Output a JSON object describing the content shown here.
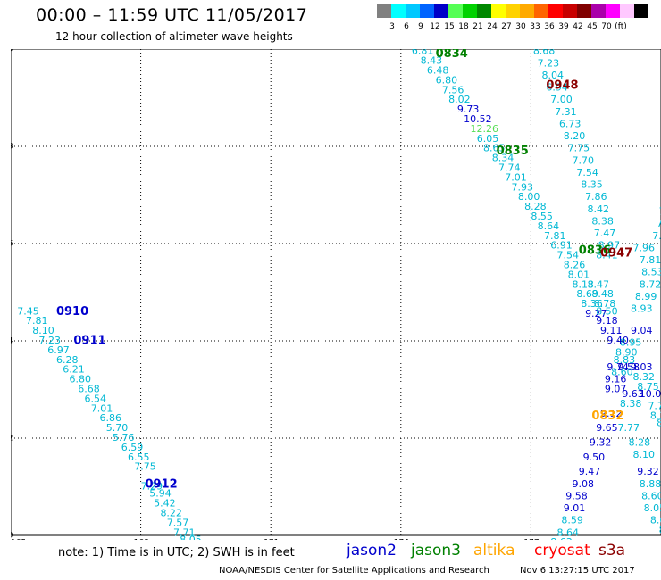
{
  "header": {
    "title": "00:00 – 11:59 UTC 11/05/2017",
    "subtitle": "12 hour collection of altimeter wave heights"
  },
  "colorbar": {
    "colors": [
      "#808080",
      "#00ffff",
      "#00c8ff",
      "#0064ff",
      "#0000c8",
      "#55ff55",
      "#00d200",
      "#008800",
      "#ffff00",
      "#ffd200",
      "#ffaa00",
      "#ff6400",
      "#ff0000",
      "#c80000",
      "#800000",
      "#aa00aa",
      "#ff00ff",
      "#ffc8ff",
      "#000000"
    ],
    "labels": [
      "3",
      "6",
      "9",
      "12",
      "15",
      "18",
      "21",
      "24",
      "27",
      "30",
      "33",
      "36",
      "39",
      "42",
      "45",
      "70",
      "(ft)"
    ]
  },
  "map": {
    "lon_ticks": [
      "165",
      "168",
      "171",
      "174",
      "177"
    ],
    "lat_ticks": [
      "40",
      "38",
      "36",
      "34",
      "32",
      "30"
    ],
    "lon_range": [
      165,
      180
    ],
    "lat_range": [
      30,
      40
    ]
  },
  "passes": [
    {
      "time": "0910",
      "color": "#0000cd",
      "lon": 166.05,
      "lat": 34.6
    },
    {
      "time": "0911",
      "color": "#0000cd",
      "lon": 166.45,
      "lat": 34.0
    },
    {
      "time": "0912",
      "color": "#0000cd",
      "lon": 168.1,
      "lat": 31.05
    },
    {
      "time": "0834",
      "color": "#008000",
      "lon": 174.8,
      "lat": 39.9
    },
    {
      "time": "0835",
      "color": "#008000",
      "lon": 176.2,
      "lat": 37.9
    },
    {
      "time": "0836",
      "color": "#008000",
      "lon": 178.1,
      "lat": 35.85
    },
    {
      "time": "0948",
      "color": "#8b0000",
      "lon": 177.35,
      "lat": 39.25
    },
    {
      "time": "0947",
      "color": "#8b0000",
      "lon": 178.6,
      "lat": 35.8
    },
    {
      "time": "0832",
      "color": "#ffa500",
      "lon": 178.4,
      "lat": 32.45
    }
  ],
  "values": [
    {
      "v": "7.45",
      "lon": 165.15,
      "lat": 34.6,
      "c": "#00b8d4"
    },
    {
      "v": "7.81",
      "lon": 165.35,
      "lat": 34.4,
      "c": "#00b8d4"
    },
    {
      "v": "8.10",
      "lon": 165.5,
      "lat": 34.2,
      "c": "#00b8d4"
    },
    {
      "v": "7.23",
      "lon": 165.65,
      "lat": 34.0,
      "c": "#00b8d4"
    },
    {
      "v": "6.97",
      "lon": 165.85,
      "lat": 33.8,
      "c": "#00b8d4"
    },
    {
      "v": "6.28",
      "lon": 166.05,
      "lat": 33.6,
      "c": "#00b8d4"
    },
    {
      "v": "6.21",
      "lon": 166.2,
      "lat": 33.4,
      "c": "#00b8d4"
    },
    {
      "v": "6.80",
      "lon": 166.35,
      "lat": 33.2,
      "c": "#00b8d4"
    },
    {
      "v": "6.68",
      "lon": 166.55,
      "lat": 33.0,
      "c": "#00b8d4"
    },
    {
      "v": "6.54",
      "lon": 166.7,
      "lat": 32.8,
      "c": "#00b8d4"
    },
    {
      "v": "7.01",
      "lon": 166.85,
      "lat": 32.6,
      "c": "#00b8d4"
    },
    {
      "v": "6.86",
      "lon": 167.05,
      "lat": 32.4,
      "c": "#00b8d4"
    },
    {
      "v": "5.70",
      "lon": 167.2,
      "lat": 32.2,
      "c": "#00b8d4"
    },
    {
      "v": "5.76",
      "lon": 167.35,
      "lat": 32.0,
      "c": "#00b8d4"
    },
    {
      "v": "6.59",
      "lon": 167.55,
      "lat": 31.8,
      "c": "#00b8d4"
    },
    {
      "v": "6.55",
      "lon": 167.7,
      "lat": 31.6,
      "c": "#00b8d4"
    },
    {
      "v": "7.75",
      "lon": 167.85,
      "lat": 31.4,
      "c": "#00b8d4"
    },
    {
      "v": "7.29",
      "lon": 168.0,
      "lat": 31.0,
      "c": "#00b8d4"
    },
    {
      "v": "5.94",
      "lon": 168.2,
      "lat": 30.85,
      "c": "#00b8d4"
    },
    {
      "v": "5.42",
      "lon": 168.3,
      "lat": 30.65,
      "c": "#00b8d4"
    },
    {
      "v": "8.22",
      "lon": 168.45,
      "lat": 30.45,
      "c": "#00b8d4"
    },
    {
      "v": "7.57",
      "lon": 168.6,
      "lat": 30.25,
      "c": "#00b8d4"
    },
    {
      "v": "7.71",
      "lon": 168.75,
      "lat": 30.05,
      "c": "#00b8d4"
    },
    {
      "v": "8.05",
      "lon": 168.9,
      "lat": 29.9,
      "c": "#00b8d4"
    },
    {
      "v": "6.81",
      "lon": 174.25,
      "lat": 39.95,
      "c": "#00b8d4"
    },
    {
      "v": "8.43",
      "lon": 174.45,
      "lat": 39.75,
      "c": "#00b8d4"
    },
    {
      "v": "6.48",
      "lon": 174.6,
      "lat": 39.55,
      "c": "#00b8d4"
    },
    {
      "v": "6.80",
      "lon": 174.8,
      "lat": 39.35,
      "c": "#00b8d4"
    },
    {
      "v": "7.56",
      "lon": 174.95,
      "lat": 39.15,
      "c": "#00b8d4"
    },
    {
      "v": "8.02",
      "lon": 175.1,
      "lat": 38.95,
      "c": "#00b8d4"
    },
    {
      "v": "9.73",
      "lon": 175.3,
      "lat": 38.75,
      "c": "#0000cd"
    },
    {
      "v": "10.52",
      "lon": 175.45,
      "lat": 38.55,
      "c": "#0000cd"
    },
    {
      "v": "12.26",
      "lon": 175.6,
      "lat": 38.35,
      "c": "#55dd55"
    },
    {
      "v": "6.05",
      "lon": 175.75,
      "lat": 38.15,
      "c": "#00b8d4"
    },
    {
      "v": "8.65",
      "lon": 175.9,
      "lat": 37.95,
      "c": "#00b8d4"
    },
    {
      "v": "8.34",
      "lon": 176.1,
      "lat": 37.75,
      "c": "#00b8d4"
    },
    {
      "v": "7.74",
      "lon": 176.25,
      "lat": 37.55,
      "c": "#00b8d4"
    },
    {
      "v": "7.01",
      "lon": 176.4,
      "lat": 37.35,
      "c": "#00b8d4"
    },
    {
      "v": "7.93",
      "lon": 176.55,
      "lat": 37.15,
      "c": "#00b8d4"
    },
    {
      "v": "8.00",
      "lon": 176.7,
      "lat": 36.95,
      "c": "#00b8d4"
    },
    {
      "v": "8.28",
      "lon": 176.85,
      "lat": 36.75,
      "c": "#00b8d4"
    },
    {
      "v": "8.55",
      "lon": 177.0,
      "lat": 36.55,
      "c": "#00b8d4"
    },
    {
      "v": "8.64",
      "lon": 177.15,
      "lat": 36.35,
      "c": "#00b8d4"
    },
    {
      "v": "7.81",
      "lon": 177.3,
      "lat": 36.15,
      "c": "#00b8d4"
    },
    {
      "v": "6.91",
      "lon": 177.45,
      "lat": 35.95,
      "c": "#00b8d4"
    },
    {
      "v": "7.54",
      "lon": 177.6,
      "lat": 35.75,
      "c": "#00b8d4"
    },
    {
      "v": "8.26",
      "lon": 177.75,
      "lat": 35.55,
      "c": "#00b8d4"
    },
    {
      "v": "8.01",
      "lon": 177.85,
      "lat": 35.35,
      "c": "#00b8d4"
    },
    {
      "v": "8.13",
      "lon": 177.95,
      "lat": 35.15,
      "c": "#00b8d4"
    },
    {
      "v": "8.69",
      "lon": 178.05,
      "lat": 34.95,
      "c": "#00b8d4"
    },
    {
      "v": "8.36",
      "lon": 178.15,
      "lat": 34.75,
      "c": "#00b8d4"
    },
    {
      "v": "9.27",
      "lon": 178.25,
      "lat": 34.55,
      "c": "#0000cd"
    },
    {
      "v": "8.68",
      "lon": 177.05,
      "lat": 39.95,
      "c": "#00b8d4"
    },
    {
      "v": "7.23",
      "lon": 177.15,
      "lat": 39.7,
      "c": "#00b8d4"
    },
    {
      "v": "8.04",
      "lon": 177.25,
      "lat": 39.45,
      "c": "#00b8d4"
    },
    {
      "v": "6.94",
      "lon": 177.35,
      "lat": 39.2,
      "c": "#00b8d4"
    },
    {
      "v": "7.00",
      "lon": 177.45,
      "lat": 38.95,
      "c": "#00b8d4"
    },
    {
      "v": "7.31",
      "lon": 177.55,
      "lat": 38.7,
      "c": "#00b8d4"
    },
    {
      "v": "6.73",
      "lon": 177.65,
      "lat": 38.45,
      "c": "#00b8d4"
    },
    {
      "v": "8.20",
      "lon": 177.75,
      "lat": 38.2,
      "c": "#00b8d4"
    },
    {
      "v": "7.75",
      "lon": 177.85,
      "lat": 37.95,
      "c": "#00b8d4"
    },
    {
      "v": "7.70",
      "lon": 177.95,
      "lat": 37.7,
      "c": "#00b8d4"
    },
    {
      "v": "7.54",
      "lon": 178.05,
      "lat": 37.45,
      "c": "#00b8d4"
    },
    {
      "v": "8.35",
      "lon": 178.15,
      "lat": 37.2,
      "c": "#00b8d4"
    },
    {
      "v": "7.86",
      "lon": 178.25,
      "lat": 36.95,
      "c": "#00b8d4"
    },
    {
      "v": "8.42",
      "lon": 178.3,
      "lat": 36.7,
      "c": "#00b8d4"
    },
    {
      "v": "8.38",
      "lon": 178.4,
      "lat": 36.45,
      "c": "#00b8d4"
    },
    {
      "v": "7.47",
      "lon": 178.45,
      "lat": 36.2,
      "c": "#00b8d4"
    },
    {
      "v": "8.97",
      "lon": 178.55,
      "lat": 35.95,
      "c": "#00b8d4"
    },
    {
      "v": "9.04",
      "lon": 179.3,
      "lat": 34.2,
      "c": "#0000cd"
    },
    {
      "v": "9.74",
      "lon": 178.75,
      "lat": 33.45,
      "c": "#0000cd"
    },
    {
      "v": "9.07",
      "lon": 178.7,
      "lat": 33.0,
      "c": "#0000cd"
    },
    {
      "v": "9.12",
      "lon": 178.6,
      "lat": 32.5,
      "c": "#0000cd"
    },
    {
      "v": "9.65",
      "lon": 178.5,
      "lat": 32.2,
      "c": "#0000cd"
    },
    {
      "v": "9.32",
      "lon": 178.35,
      "lat": 31.9,
      "c": "#0000cd"
    },
    {
      "v": "9.50",
      "lon": 178.2,
      "lat": 31.6,
      "c": "#0000cd"
    },
    {
      "v": "9.47",
      "lon": 178.1,
      "lat": 31.3,
      "c": "#0000cd"
    },
    {
      "v": "9.08",
      "lon": 177.95,
      "lat": 31.05,
      "c": "#0000cd"
    },
    {
      "v": "9.58",
      "lon": 177.8,
      "lat": 30.8,
      "c": "#0000cd"
    },
    {
      "v": "9.01",
      "lon": 177.75,
      "lat": 30.55,
      "c": "#0000cd"
    },
    {
      "v": "8.59",
      "lon": 177.7,
      "lat": 30.3,
      "c": "#00b8d4"
    },
    {
      "v": "8.64",
      "lon": 177.6,
      "lat": 30.05,
      "c": "#00b8d4"
    },
    {
      "v": "8.63",
      "lon": 177.45,
      "lat": 29.85,
      "c": "#00b8d4"
    },
    {
      "v": "9.16",
      "lon": 178.7,
      "lat": 33.2,
      "c": "#0000cd"
    },
    {
      "v": "9.63",
      "lon": 179.1,
      "lat": 32.9,
      "c": "#0000cd"
    },
    {
      "v": "9.58",
      "lon": 179.0,
      "lat": 33.45,
      "c": "#0000cd"
    },
    {
      "v": "9.03",
      "lon": 179.3,
      "lat": 33.45,
      "c": "#0000cd"
    },
    {
      "v": "10.07",
      "lon": 179.5,
      "lat": 32.9,
      "c": "#0000cd"
    },
    {
      "v": "7.77",
      "lon": 179.0,
      "lat": 32.2,
      "c": "#00b8d4"
    },
    {
      "v": "8.38",
      "lon": 179.05,
      "lat": 32.7,
      "c": "#00b8d4"
    },
    {
      "v": "8.28",
      "lon": 179.25,
      "lat": 31.9,
      "c": "#00b8d4"
    },
    {
      "v": "8.10",
      "lon": 179.35,
      "lat": 31.65,
      "c": "#00b8d4"
    },
    {
      "v": "9.32",
      "lon": 179.45,
      "lat": 31.3,
      "c": "#0000cd"
    },
    {
      "v": "8.88",
      "lon": 179.5,
      "lat": 31.05,
      "c": "#00b8d4"
    },
    {
      "v": "8.60",
      "lon": 179.55,
      "lat": 30.8,
      "c": "#00b8d4"
    },
    {
      "v": "8.05",
      "lon": 179.6,
      "lat": 30.55,
      "c": "#00b8d4"
    },
    {
      "v": "8.67",
      "lon": 179.75,
      "lat": 30.3,
      "c": "#00b8d4"
    },
    {
      "v": "8.34",
      "lon": 179.95,
      "lat": 30.1,
      "c": "#00b8d4"
    },
    {
      "v": "7.99",
      "lon": 180.0,
      "lat": 29.85,
      "c": "#00b8d4"
    },
    {
      "v": "7.96",
      "lon": 179.35,
      "lat": 35.9,
      "c": "#00b8d4"
    },
    {
      "v": "7.81",
      "lon": 179.5,
      "lat": 35.65,
      "c": "#00b8d4"
    },
    {
      "v": "8.53",
      "lon": 179.55,
      "lat": 35.4,
      "c": "#00b8d4"
    },
    {
      "v": "8.72",
      "lon": 179.5,
      "lat": 35.15,
      "c": "#00b8d4"
    },
    {
      "v": "8.99",
      "lon": 179.4,
      "lat": 34.9,
      "c": "#00b8d4"
    },
    {
      "v": "8.93",
      "lon": 179.3,
      "lat": 34.65,
      "c": "#00b8d4"
    },
    {
      "v": "8.95",
      "lon": 179.05,
      "lat": 33.95,
      "c": "#00b8d4"
    },
    {
      "v": "8.32",
      "lon": 179.35,
      "lat": 33.25,
      "c": "#00b8d4"
    },
    {
      "v": "8.75",
      "lon": 179.45,
      "lat": 33.05,
      "c": "#00b8d4"
    },
    {
      "v": "7.76",
      "lon": 179.7,
      "lat": 32.65,
      "c": "#00b8d4"
    },
    {
      "v": "8.31",
      "lon": 179.75,
      "lat": 32.45,
      "c": "#00b8d4"
    },
    {
      "v": "8.18",
      "lon": 179.9,
      "lat": 32.3,
      "c": "#00b8d4"
    },
    {
      "v": "7.72",
      "lon": 179.8,
      "lat": 36.15,
      "c": "#00b8d4"
    },
    {
      "v": "7.98",
      "lon": 179.9,
      "lat": 36.4,
      "c": "#00b8d4"
    },
    {
      "v": "7.85",
      "lon": 179.95,
      "lat": 36.65,
      "c": "#00b8d4"
    },
    {
      "v": "8.04",
      "lon": 180.0,
      "lat": 36.9,
      "c": "#00b8d4"
    },
    {
      "v": "8.30",
      "lon": 180.05,
      "lat": 37.1,
      "c": "#00b8d4"
    },
    {
      "v": "8.45",
      "lon": 180.1,
      "lat": 37.35,
      "c": "#00b8d4"
    },
    {
      "v": "8.61",
      "lon": 180.15,
      "lat": 37.6,
      "c": "#00b8d4"
    },
    {
      "v": "9.40",
      "lon": 178.75,
      "lat": 34.0,
      "c": "#0000cd"
    },
    {
      "v": "9.11",
      "lon": 178.6,
      "lat": 34.2,
      "c": "#0000cd"
    },
    {
      "v": "9.18",
      "lon": 178.5,
      "lat": 34.4,
      "c": "#0000cd"
    },
    {
      "v": "8.50",
      "lon": 178.5,
      "lat": 34.6,
      "c": "#00b8d4"
    },
    {
      "v": "8.78",
      "lon": 178.45,
      "lat": 34.75,
      "c": "#00b8d4"
    },
    {
      "v": "8.48",
      "lon": 178.4,
      "lat": 34.95,
      "c": "#00b8d4"
    },
    {
      "v": "8.47",
      "lon": 178.3,
      "lat": 35.15,
      "c": "#00b8d4"
    },
    {
      "v": "8.41",
      "lon": 178.5,
      "lat": 35.75,
      "c": "#00b8d4"
    },
    {
      "v": "8.90",
      "lon": 178.95,
      "lat": 33.75,
      "c": "#00b8d4"
    },
    {
      "v": "8.83",
      "lon": 178.9,
      "lat": 33.6,
      "c": "#00b8d4"
    },
    {
      "v": "8.60",
      "lon": 178.85,
      "lat": 33.35,
      "c": "#00b8d4"
    }
  ],
  "footer": {
    "note": "note:  1) Time is in UTC;  2) SWH is in feet",
    "satellites": [
      {
        "name": "jason2",
        "color": "#0000cd"
      },
      {
        "name": "jason3",
        "color": "#008000"
      },
      {
        "name": "altika",
        "color": "#ffa500"
      },
      {
        "name": "cryosat",
        "color": "#ff0000"
      },
      {
        "name": "s3a",
        "color": "#8b0000"
      }
    ],
    "credit": "NOAA/NESDIS Center for Satellite Applications and Research",
    "timestamp": "Nov  6 13:27:15 UTC 2017"
  }
}
